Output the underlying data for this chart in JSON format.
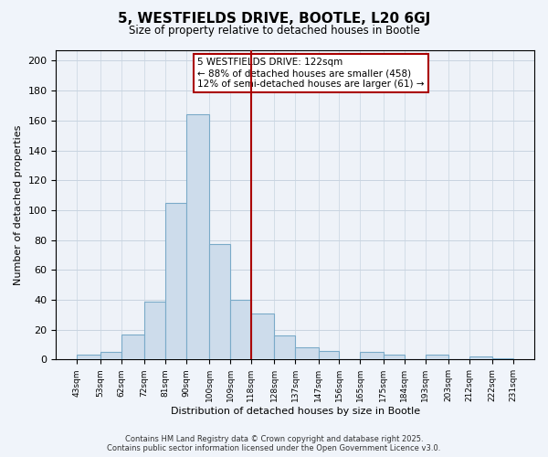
{
  "title": "5, WESTFIELDS DRIVE, BOOTLE, L20 6GJ",
  "subtitle": "Size of property relative to detached houses in Bootle",
  "xlabel": "Distribution of detached houses by size in Bootle",
  "ylabel": "Number of detached properties",
  "bar_lefts": [
    43,
    53,
    62,
    72,
    81,
    90,
    100,
    109,
    118,
    128,
    137,
    147,
    156,
    165,
    175,
    184,
    193,
    203,
    212,
    222
  ],
  "bar_rights": [
    53,
    62,
    72,
    81,
    90,
    100,
    109,
    118,
    128,
    137,
    147,
    156,
    165,
    175,
    184,
    193,
    203,
    212,
    222,
    231
  ],
  "bar_heights": [
    3,
    5,
    17,
    39,
    105,
    164,
    77,
    40,
    31,
    16,
    8,
    6,
    0,
    5,
    3,
    0,
    3,
    0,
    2,
    1
  ],
  "bar_color": "#cddceb",
  "bar_edge_color": "#7aaac8",
  "vline_x": 118,
  "vline_color": "#aa0000",
  "annotation_title": "5 WESTFIELDS DRIVE: 122sqm",
  "annotation_line1": "← 88% of detached houses are smaller (458)",
  "annotation_line2": "12% of semi-detached houses are larger (61) →",
  "annotation_box_color": "#ffffff",
  "annotation_box_edge": "#aa0000",
  "xlim": [
    34,
    240
  ],
  "ylim": [
    0,
    207
  ],
  "tick_labels": [
    "43sqm",
    "53sqm",
    "62sqm",
    "72sqm",
    "81sqm",
    "90sqm",
    "100sqm",
    "109sqm",
    "118sqm",
    "128sqm",
    "137sqm",
    "147sqm",
    "156sqm",
    "165sqm",
    "175sqm",
    "184sqm",
    "193sqm",
    "203sqm",
    "212sqm",
    "222sqm",
    "231sqm"
  ],
  "tick_positions": [
    43,
    53,
    62,
    72,
    81,
    90,
    100,
    109,
    118,
    128,
    137,
    147,
    156,
    165,
    175,
    184,
    193,
    203,
    212,
    222,
    231
  ],
  "yticks": [
    0,
    20,
    40,
    60,
    80,
    100,
    120,
    140,
    160,
    180,
    200
  ],
  "footer_line1": "Contains HM Land Registry data © Crown copyright and database right 2025.",
  "footer_line2": "Contains public sector information licensed under the Open Government Licence v3.0.",
  "bg_color": "#f0f4fa",
  "grid_color": "#c8d4e0",
  "plot_bg_color": "#eef2f8"
}
